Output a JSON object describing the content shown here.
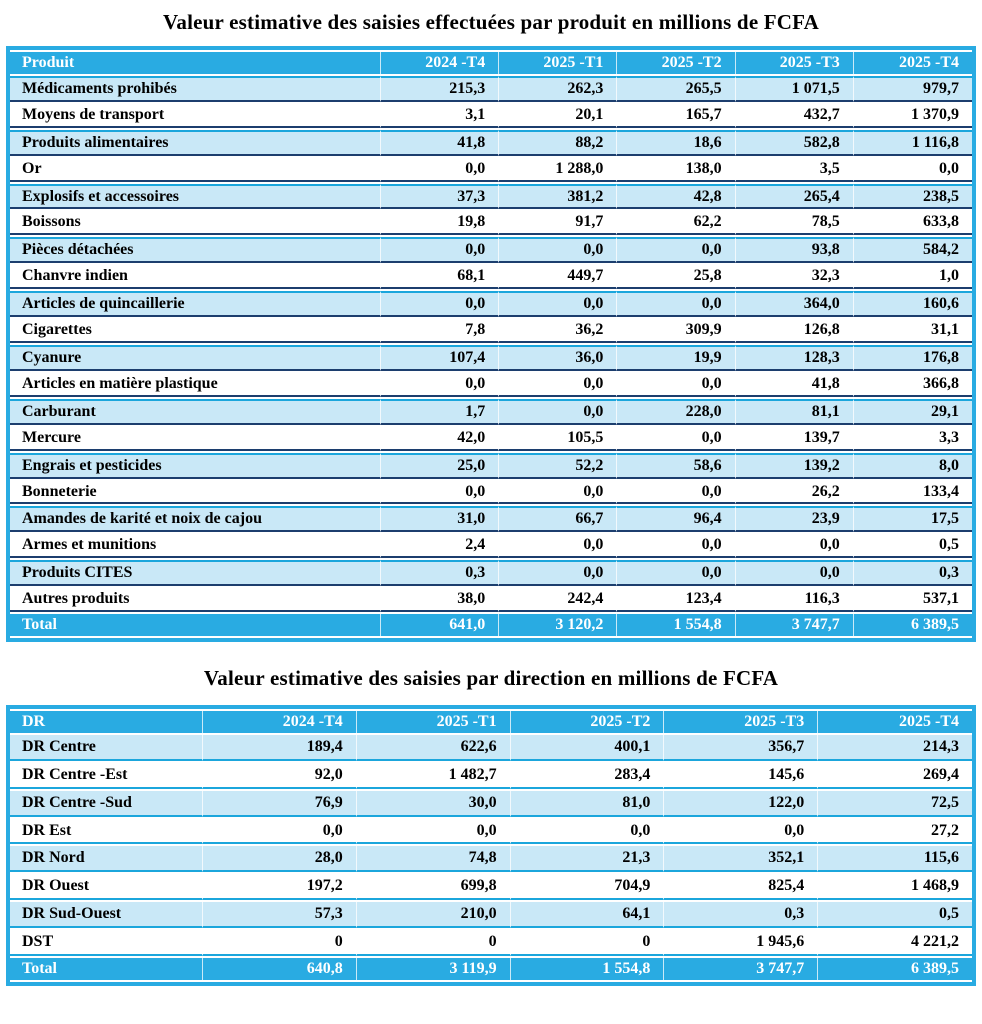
{
  "colors": {
    "header_bg": "#29ABE2",
    "stripe_row_bg": "#C9E8F7",
    "row_border_dark": "#1C3E6E",
    "row_border_cyan": "#1BA6DC",
    "header_text": "#FFFFFF",
    "body_text": "#000000"
  },
  "products_table": {
    "title": "Valeur estimative des saisies effectuées par produit en millions de FCFA",
    "columns": [
      "Produit",
      "2024 -T4",
      "2025 -T1",
      "2025 -T2",
      "2025 -T3",
      "2025 -T4"
    ],
    "rows": [
      [
        "Médicaments prohibés",
        "215,3",
        "262,3",
        "265,5",
        "1 071,5",
        "979,7"
      ],
      [
        "Moyens de transport",
        "3,1",
        "20,1",
        "165,7",
        "432,7",
        "1 370,9"
      ],
      [
        "Produits alimentaires",
        "41,8",
        "88,2",
        "18,6",
        "582,8",
        "1 116,8"
      ],
      [
        "Or",
        "0,0",
        "1 288,0",
        "138,0",
        "3,5",
        "0,0"
      ],
      [
        "Explosifs et accessoires",
        "37,3",
        "381,2",
        "42,8",
        "265,4",
        "238,5"
      ],
      [
        "Boissons",
        "19,8",
        "91,7",
        "62,2",
        "78,5",
        "633,8"
      ],
      [
        "Pièces détachées",
        "0,0",
        "0,0",
        "0,0",
        "93,8",
        "584,2"
      ],
      [
        "Chanvre indien",
        "68,1",
        "449,7",
        "25,8",
        "32,3",
        "1,0"
      ],
      [
        "Articles de quincaillerie",
        "0,0",
        "0,0",
        "0,0",
        "364,0",
        "160,6"
      ],
      [
        "Cigarettes",
        "7,8",
        "36,2",
        "309,9",
        "126,8",
        "31,1"
      ],
      [
        "Cyanure",
        "107,4",
        "36,0",
        "19,9",
        "128,3",
        "176,8"
      ],
      [
        "Articles en matière plastique",
        "0,0",
        "0,0",
        "0,0",
        "41,8",
        "366,8"
      ],
      [
        "Carburant",
        "1,7",
        "0,0",
        "228,0",
        "81,1",
        "29,1"
      ],
      [
        "Mercure",
        "42,0",
        "105,5",
        "0,0",
        "139,7",
        "3,3"
      ],
      [
        "Engrais et pesticides",
        "25,0",
        "52,2",
        "58,6",
        "139,2",
        "8,0"
      ],
      [
        "Bonneterie",
        "0,0",
        "0,0",
        "0,0",
        "26,2",
        "133,4"
      ],
      [
        "Amandes de karité et noix de cajou",
        "31,0",
        "66,7",
        "96,4",
        "23,9",
        "17,5"
      ],
      [
        "Armes et munitions",
        "2,4",
        "0,0",
        "0,0",
        "0,0",
        "0,5"
      ],
      [
        "Produits CITES",
        "0,3",
        "0,0",
        "0,0",
        "0,0",
        "0,3"
      ],
      [
        "Autres produits",
        "38,0",
        "242,4",
        "123,4",
        "116,3",
        "537,1"
      ]
    ],
    "total": [
      "Total",
      "641,0",
      "3 120,2",
      "1 554,8",
      "3 747,7",
      "6 389,5"
    ]
  },
  "directions_table": {
    "title": "Valeur estimative des saisies par direction en millions de FCFA",
    "columns": [
      "DR",
      "2024 -T4",
      "2025 -T1",
      "2025 -T2",
      "2025 -T3",
      "2025 -T4"
    ],
    "rows": [
      [
        "DR Centre",
        "189,4",
        "622,6",
        "400,1",
        "356,7",
        "214,3"
      ],
      [
        "DR Centre -Est",
        "92,0",
        "1 482,7",
        "283,4",
        "145,6",
        "269,4"
      ],
      [
        "DR Centre -Sud",
        "76,9",
        "30,0",
        "81,0",
        "122,0",
        "72,5"
      ],
      [
        "DR Est",
        "0,0",
        "0,0",
        "0,0",
        "0,0",
        "27,2"
      ],
      [
        "DR Nord",
        "28,0",
        "74,8",
        "21,3",
        "352,1",
        "115,6"
      ],
      [
        "DR Ouest",
        "197,2",
        "699,8",
        "704,9",
        "825,4",
        "1 468,9"
      ],
      [
        "DR Sud-Ouest",
        "57,3",
        "210,0",
        "64,1",
        "0,3",
        "0,5"
      ],
      [
        "DST",
        "0",
        "0",
        "0",
        "1 945,6",
        "4 221,2"
      ]
    ],
    "total": [
      "Total",
      "640,8",
      "3 119,9",
      "1 554,8",
      "3 747,7",
      "6 389,5"
    ]
  }
}
